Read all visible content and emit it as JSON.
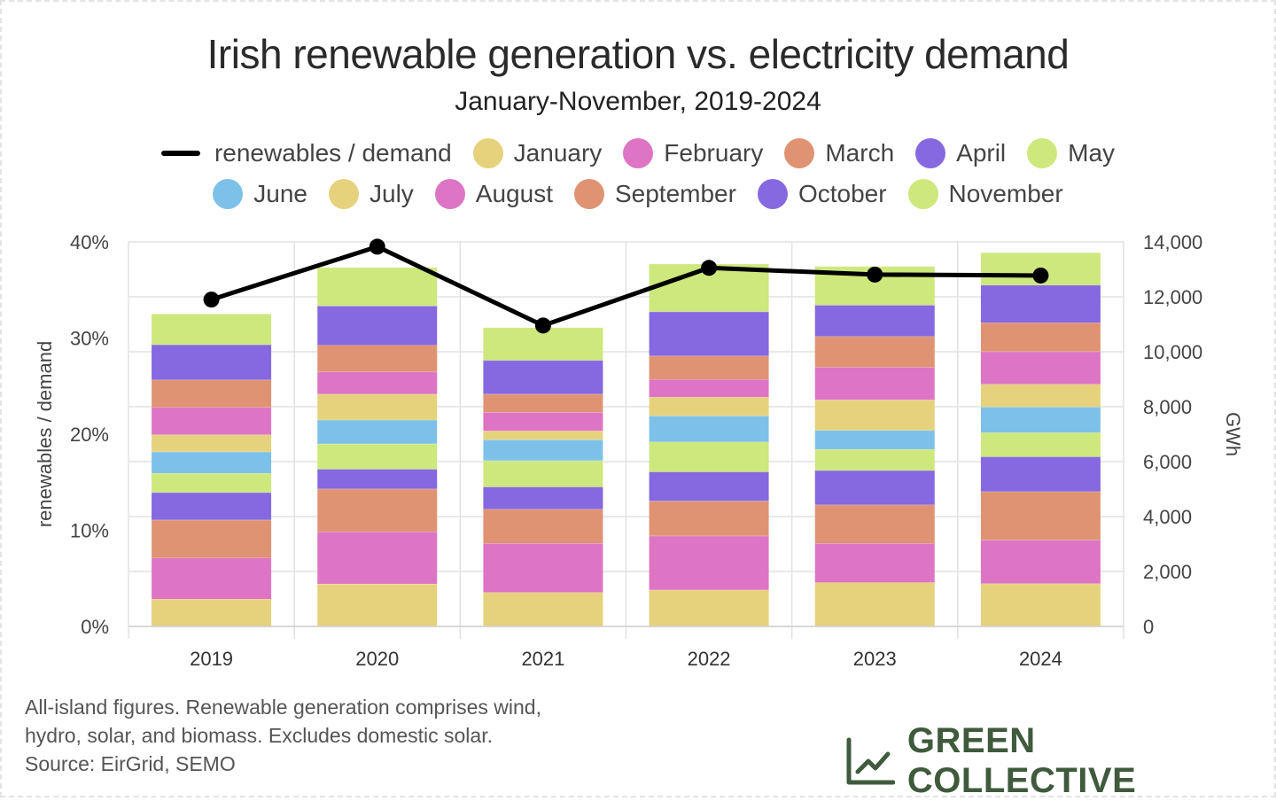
{
  "title": "Irish renewable generation vs. electricity demand",
  "subtitle": "January-November, 2019-2024",
  "footnote": {
    "line1": "All-island figures. Renewable generation comprises wind,",
    "line2": "hydro, solar, and biomass. Excludes domestic solar.",
    "line3": "Source: EirGrid, SEMO"
  },
  "brand": "GREEN COLLECTIVE",
  "chart_data": {
    "type": "bar",
    "stacked": true,
    "categories": [
      "2019",
      "2020",
      "2021",
      "2022",
      "2023",
      "2024"
    ],
    "y_left": {
      "label": "renewables / demand",
      "range": [
        0,
        40
      ],
      "ticks": [
        "0%",
        "10%",
        "20%",
        "30%",
        "40%"
      ]
    },
    "y_right": {
      "label": "GWh",
      "range": [
        0,
        14000
      ],
      "ticks": [
        "0",
        "2,000",
        "4,000",
        "6,000",
        "8,000",
        "10,000",
        "12,000",
        "14,000"
      ]
    },
    "grid": true,
    "legend_position": "top",
    "line_series": {
      "name": "renewables / demand",
      "axis": "left",
      "color": "#000000",
      "values": [
        34.0,
        39.5,
        31.3,
        37.3,
        36.6,
        36.5
      ]
    },
    "series": [
      {
        "name": "January",
        "color": "#e6d27c",
        "values": [
          1000,
          1550,
          1240,
          1330,
          1600,
          1560
        ]
      },
      {
        "name": "February",
        "color": "#dd75c4",
        "values": [
          1500,
          1900,
          1790,
          1970,
          1430,
          1590
        ]
      },
      {
        "name": "March",
        "color": "#df9372",
        "values": [
          1380,
          1560,
          1240,
          1270,
          1400,
          1760
        ]
      },
      {
        "name": "April",
        "color": "#8668e0",
        "values": [
          1000,
          720,
          810,
          1060,
          1250,
          1270
        ]
      },
      {
        "name": "May",
        "color": "#cde87c",
        "values": [
          700,
          920,
          960,
          1090,
          770,
          880
        ]
      },
      {
        "name": "June",
        "color": "#7ec1e8",
        "values": [
          780,
          870,
          760,
          950,
          690,
          930
        ]
      },
      {
        "name": "July",
        "color": "#e6d27c",
        "values": [
          620,
          940,
          320,
          680,
          1110,
          830
        ]
      },
      {
        "name": "August",
        "color": "#dd75c4",
        "values": [
          1000,
          810,
          680,
          650,
          1190,
          1190
        ]
      },
      {
        "name": "September",
        "color": "#df9372",
        "values": [
          1000,
          970,
          660,
          850,
          1120,
          1050
        ]
      },
      {
        "name": "October",
        "color": "#8668e0",
        "values": [
          1280,
          1430,
          1230,
          1610,
          1140,
          1370
        ]
      },
      {
        "name": "November",
        "color": "#cde87c",
        "values": [
          1120,
          1400,
          1190,
          1740,
          1410,
          1180
        ]
      }
    ]
  }
}
